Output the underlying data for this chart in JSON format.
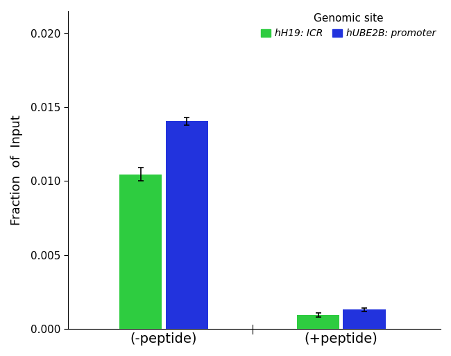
{
  "categories": [
    "(-peptide)",
    "(+peptide)"
  ],
  "green_values": [
    0.01045,
    0.00095
  ],
  "blue_values": [
    0.01405,
    0.0013
  ],
  "green_errors": [
    0.00045,
    0.00015
  ],
  "blue_errors": [
    0.00025,
    0.0001
  ],
  "green_color": "#2ecc40",
  "blue_color": "#2233dd",
  "ylabel": "Fraction  of  Input",
  "ylim": [
    0,
    0.0215
  ],
  "yticks": [
    0.0,
    0.005,
    0.01,
    0.015,
    0.02
  ],
  "legend_title": "Genomic site",
  "legend_label_green": "hH19: ICR",
  "legend_label_blue": "hUBE2B: promoter",
  "bar_width": 0.12,
  "group_centers": [
    0.22,
    0.72
  ],
  "xlim": [
    -0.05,
    1.0
  ],
  "background_color": "#ffffff",
  "title_fontsize": 11,
  "legend_fontsize": 10,
  "axis_fontsize": 13,
  "tick_fontsize": 11
}
